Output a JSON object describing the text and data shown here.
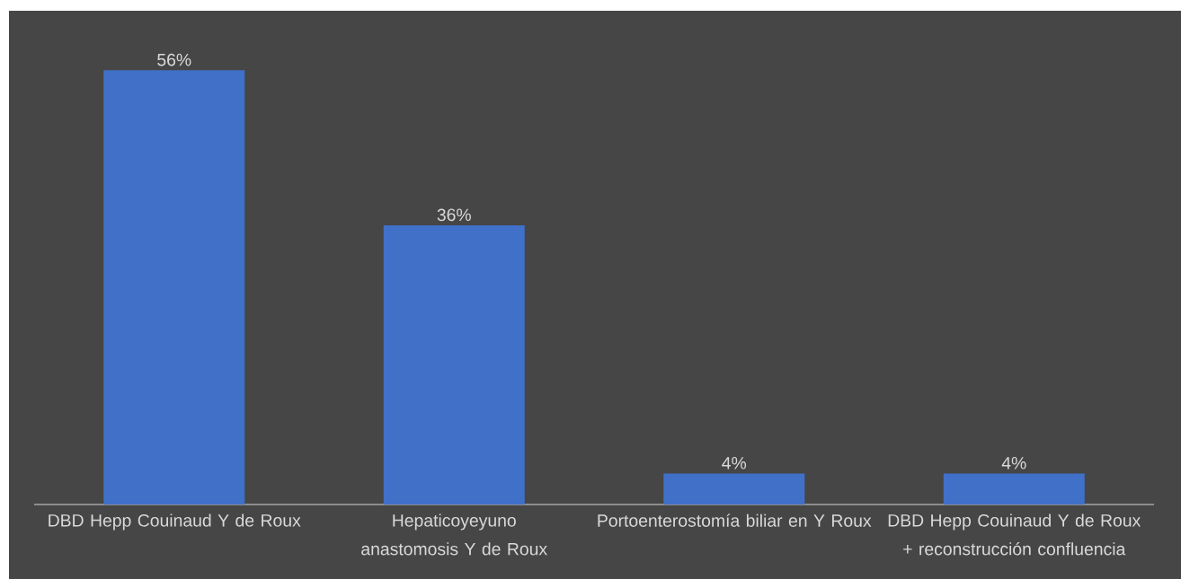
{
  "chart_data": {
    "type": "bar",
    "categories": [
      "DBD Hepp Couinaud Y de Roux",
      "Hepaticoyeyuno anastomosis Y de Roux",
      "Portoenterostomía biliar en Y Roux",
      "DBD Hepp Couinaud Y de Roux + reconstrucción confluencia"
    ],
    "values": [
      56,
      36,
      4,
      4
    ],
    "value_labels": [
      "56%",
      "36%",
      "4%",
      "4%"
    ],
    "color": "#4070c8"
  }
}
